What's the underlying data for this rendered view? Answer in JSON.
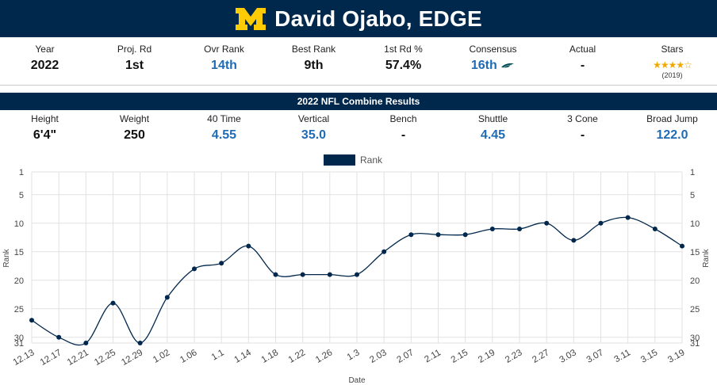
{
  "header": {
    "title": "David Ojabo, EDGE",
    "logo_icon": "block-m-logo-icon"
  },
  "profile": [
    {
      "label": "Year",
      "value": "2022",
      "style": "plain"
    },
    {
      "label": "Proj. Rd",
      "value": "1st",
      "style": "plain"
    },
    {
      "label": "Ovr Rank",
      "value": "14th",
      "style": "blue"
    },
    {
      "label": "Best Rank",
      "value": "9th",
      "style": "plain"
    },
    {
      "label": "1st Rd %",
      "value": "57.4%",
      "style": "plain"
    },
    {
      "label": "Consensus",
      "value": "16th",
      "style": "blue",
      "icon": "eagles-logo-icon"
    },
    {
      "label": "Actual",
      "value": "-",
      "style": "plain"
    },
    {
      "label": "Stars",
      "value": "★★★★☆",
      "sub": "(2019)",
      "style": "stars",
      "rating": 4,
      "max_rating": 5
    }
  ],
  "combine": {
    "title": "2022 NFL Combine Results",
    "items": [
      {
        "label": "Height",
        "value": "6'4\"",
        "style": "plain"
      },
      {
        "label": "Weight",
        "value": "250",
        "style": "plain"
      },
      {
        "label": "40 Time",
        "value": "4.55",
        "style": "blue"
      },
      {
        "label": "Vertical",
        "value": "35.0",
        "style": "blue"
      },
      {
        "label": "Bench",
        "value": "-",
        "style": "plain"
      },
      {
        "label": "Shuttle",
        "value": "4.45",
        "style": "blue"
      },
      {
        "label": "3 Cone",
        "value": "-",
        "style": "plain"
      },
      {
        "label": "Broad Jump",
        "value": "122.0",
        "style": "blue"
      }
    ]
  },
  "colors": {
    "navy": "#00274c",
    "maize": "#ffcb05",
    "blue_value": "#1f6bb5",
    "star": "#f0a800"
  },
  "chart_data": {
    "type": "line",
    "legend": "Rank",
    "legend_position": "top-center",
    "xlabel": "Date",
    "ylabel": "Rank",
    "ylim": [
      1,
      31
    ],
    "y_inverted": true,
    "yticks": [
      1,
      5,
      10,
      15,
      20,
      25,
      30,
      31
    ],
    "grid": true,
    "series": [
      {
        "name": "Rank",
        "x": [
          "12.13",
          "12.17",
          "12.21",
          "12.25",
          "12.29",
          "1.02",
          "1.06",
          "1.1",
          "1.14",
          "1.18",
          "1.22",
          "1.26",
          "1.3",
          "2.03",
          "2.07",
          "2.11",
          "2.15",
          "2.19",
          "2.23",
          "2.27",
          "3.03",
          "3.07",
          "3.11",
          "3.15",
          "3.19"
        ],
        "values": [
          27,
          30,
          31,
          24,
          31,
          23,
          18,
          17,
          14,
          19,
          19,
          19,
          19,
          15,
          12,
          12,
          12,
          11,
          11,
          10,
          13,
          10,
          9,
          11,
          14
        ]
      }
    ]
  }
}
